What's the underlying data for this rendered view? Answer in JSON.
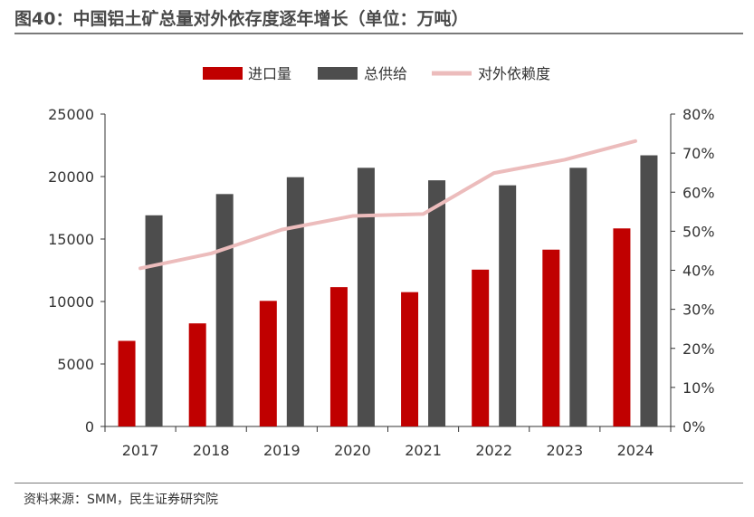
{
  "header": {
    "title": "图40：中国铝土矿总量对外依存度逐年增长（单位：万吨）"
  },
  "footer": {
    "source": "资料来源：SMM，民生证券研究院"
  },
  "colors": {
    "import": "#c00000",
    "supply": "#4d4d4d",
    "dependency": "#ecbcbc",
    "axis": "#333333"
  },
  "chart_data": {
    "type": "bar",
    "categories": [
      "2017",
      "2018",
      "2019",
      "2020",
      "2021",
      "2022",
      "2023",
      "2024"
    ],
    "series": [
      {
        "name": "进口量",
        "type": "bar",
        "axis": "left",
        "values": [
          6850,
          8250,
          10050,
          11150,
          10750,
          12550,
          14150,
          15850
        ]
      },
      {
        "name": "总供给",
        "type": "bar",
        "axis": "left",
        "values": [
          16900,
          18600,
          19950,
          20700,
          19700,
          19300,
          20700,
          21700
        ]
      },
      {
        "name": "对外依赖度",
        "type": "line",
        "axis": "right",
        "values": [
          0.405,
          0.443,
          0.504,
          0.539,
          0.544,
          0.649,
          0.683,
          0.731
        ]
      }
    ],
    "y_left": {
      "lim": [
        0,
        25000
      ],
      "ticks": [
        "0",
        "5000",
        "10000",
        "15000",
        "20000",
        "25000"
      ]
    },
    "y_right": {
      "lim": [
        0,
        0.8
      ],
      "ticks": [
        "0%",
        "10%",
        "20%",
        "30%",
        "40%",
        "50%",
        "60%",
        "70%",
        "80%"
      ]
    },
    "legend_position": "top-center",
    "grid": false
  }
}
